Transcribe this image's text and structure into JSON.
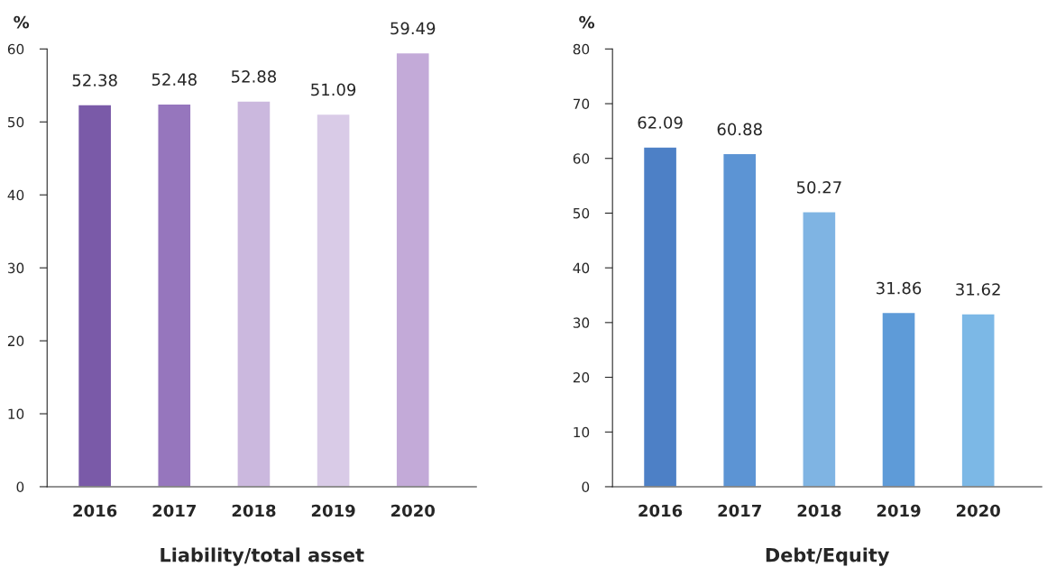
{
  "chart_data": [
    {
      "type": "bar",
      "xlabel": "Liability/total asset",
      "ylabel": "%",
      "categories": [
        "2016",
        "2017",
        "2018",
        "2019",
        "2020"
      ],
      "values": [
        52.38,
        52.48,
        52.88,
        51.09,
        59.49
      ],
      "colors": [
        "#7a5aa8",
        "#9676bd",
        "#cbb8de",
        "#d9cbe7",
        "#c3aad8"
      ],
      "ylim": [
        0,
        60
      ],
      "yticks": [
        0,
        10,
        20,
        30,
        40,
        50,
        60
      ],
      "data_labels": true,
      "grid": false,
      "legend": false
    },
    {
      "type": "bar",
      "xlabel": "Debt/Equity",
      "ylabel": "%",
      "categories": [
        "2016",
        "2017",
        "2018",
        "2019",
        "2020"
      ],
      "values": [
        62.09,
        60.88,
        50.27,
        31.86,
        31.62
      ],
      "colors": [
        "#4d80c6",
        "#5c94d4",
        "#7fb4e3",
        "#5e9bd8",
        "#7cb8e6"
      ],
      "ylim": [
        0,
        80
      ],
      "yticks": [
        0,
        10,
        20,
        30,
        40,
        50,
        60,
        70,
        80
      ],
      "data_labels": true,
      "grid": false,
      "legend": false
    }
  ]
}
